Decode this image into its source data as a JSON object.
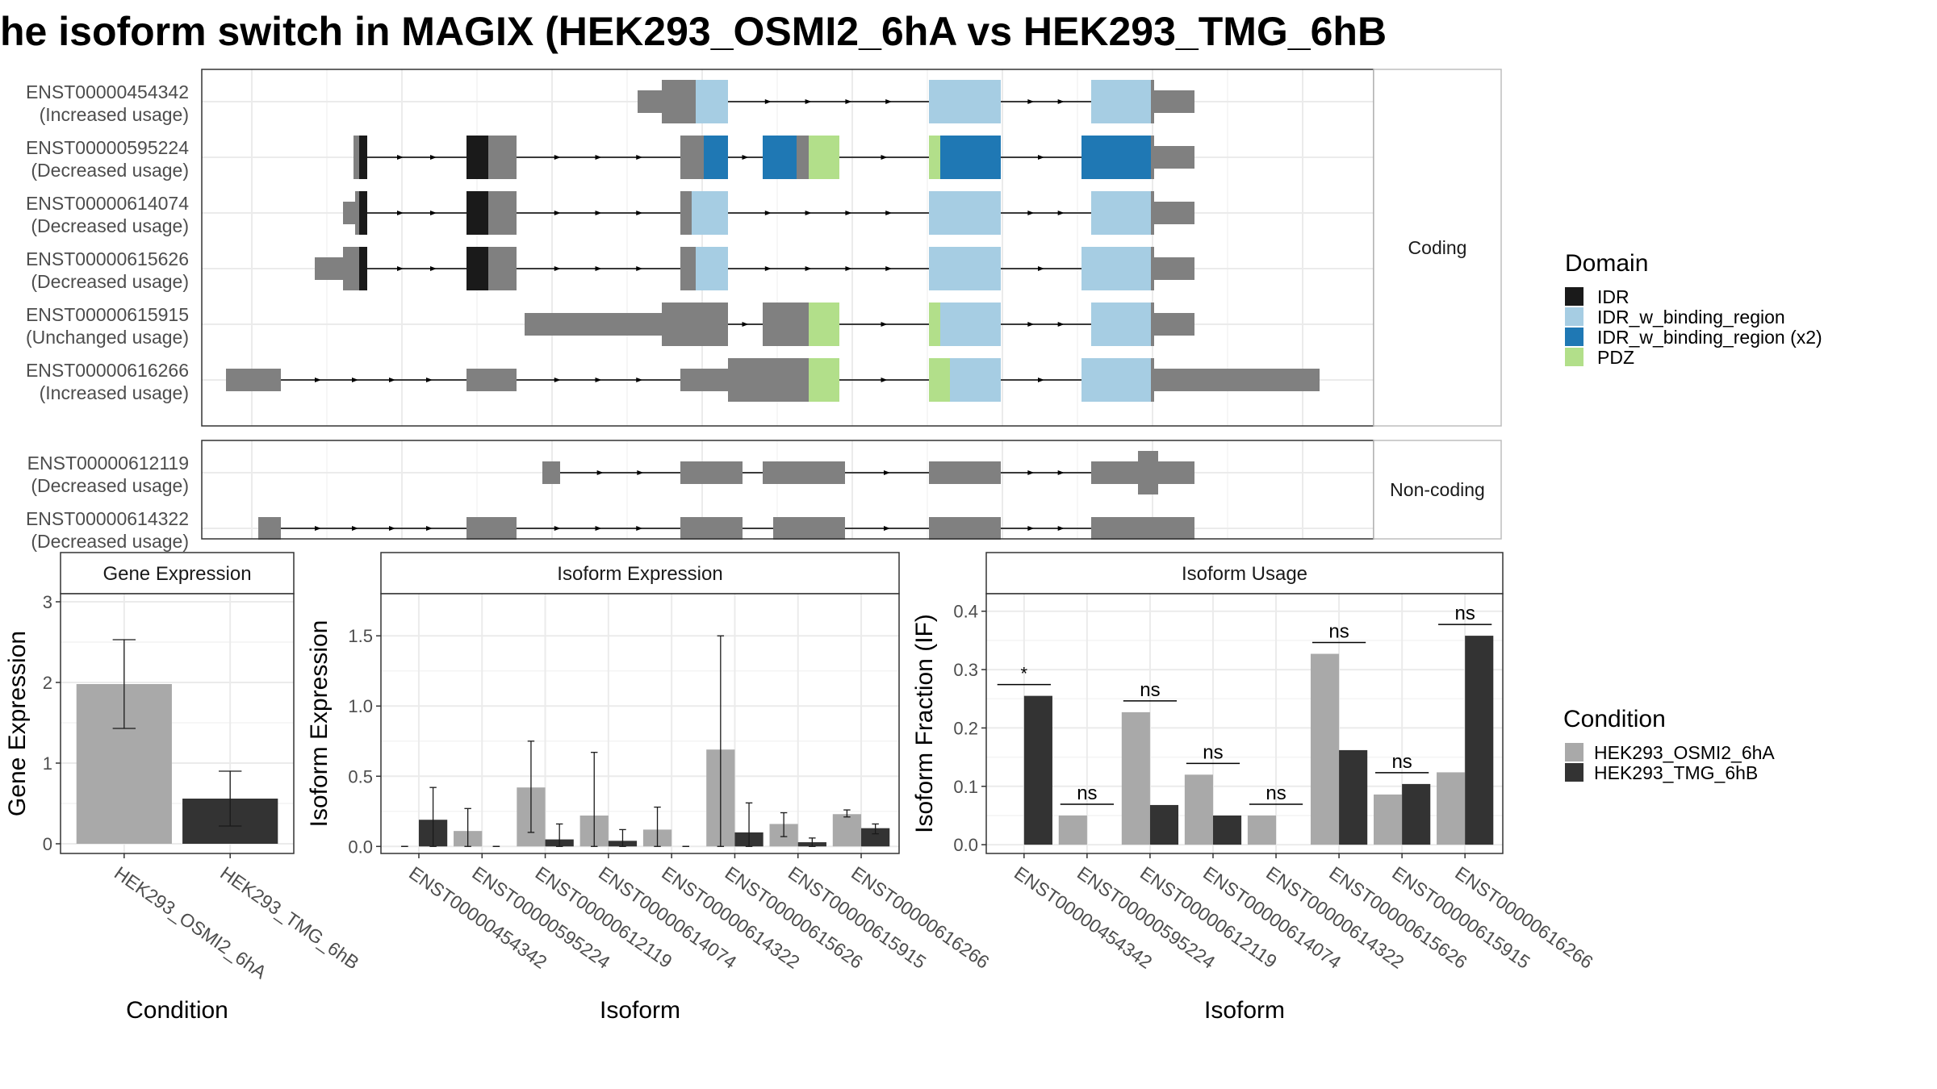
{
  "title": "he isoform switch in MAGIX (HEK293_OSMI2_6hA vs HEK293_TMG_6hB",
  "colors": {
    "exon": "#808080",
    "IDR": "#1a1a1a",
    "IDR_w_binding_region": "#a6cde3",
    "IDR_w_binding_region (x2)": "#1f78b4",
    "PDZ": "#b2df8a",
    "cond1": "#a9a9a9",
    "cond2": "#333333"
  },
  "transcript_panels": [
    {
      "strip": "Coding",
      "rows": [
        {
          "id": "ENST00000454342",
          "usage": "(Increased usage)",
          "exons": [
            [
              540,
              570,
              "UTR"
            ],
            [
              570,
              612,
              "CDS"
            ],
            [
              612,
              652,
              "CDS"
            ],
            [
              901,
              990,
              "CDS"
            ],
            [
              1102,
              1177,
              "CDS"
            ],
            [
              1177,
              1180,
              "CDS"
            ],
            [
              1180,
              1230,
              "UTR"
            ]
          ],
          "domains": [
            [
              612,
              652,
              "IDR_w_binding_region"
            ],
            [
              901,
              990,
              "IDR_w_binding_region"
            ],
            [
              1102,
              1176,
              "IDR_w_binding_region"
            ]
          ]
        },
        {
          "id": "ENST00000595224",
          "usage": "(Decreased usage)",
          "exons": [
            [
              188,
              205,
              "CDS"
            ],
            [
              328,
              355,
              "CDS"
            ],
            [
              355,
              390,
              "CDS"
            ],
            [
              593,
              622,
              "CDS"
            ],
            [
              622,
              652,
              "CDS"
            ],
            [
              695,
              737,
              "CDS"
            ],
            [
              737,
              752,
              "CDS"
            ],
            [
              752,
              790,
              "CDS"
            ],
            [
              901,
              990,
              "CDS"
            ],
            [
              1090,
              1177,
              "CDS"
            ],
            [
              1177,
              1180,
              "CDS"
            ],
            [
              1180,
              1230,
              "UTR"
            ]
          ],
          "domains": [
            [
              195,
              205,
              "IDR"
            ],
            [
              328,
              355,
              "IDR"
            ],
            [
              622,
              652,
              "IDR_w_binding_region (x2)"
            ],
            [
              695,
              737,
              "IDR_w_binding_region (x2)"
            ],
            [
              752,
              790,
              "PDZ"
            ],
            [
              901,
              915,
              "PDZ"
            ],
            [
              915,
              990,
              "IDR_w_binding_region (x2)"
            ],
            [
              1090,
              1176,
              "IDR_w_binding_region (x2)"
            ]
          ]
        },
        {
          "id": "ENST00000614074",
          "usage": "(Decreased usage)",
          "exons": [
            [
              175,
              190,
              "UTR"
            ],
            [
              190,
              205,
              "CDS"
            ],
            [
              328,
              355,
              "CDS"
            ],
            [
              355,
              390,
              "CDS"
            ],
            [
              593,
              607,
              "CDS"
            ],
            [
              607,
              652,
              "CDS"
            ],
            [
              901,
              990,
              "CDS"
            ],
            [
              1102,
              1177,
              "CDS"
            ],
            [
              1177,
              1180,
              "CDS"
            ],
            [
              1180,
              1230,
              "UTR"
            ]
          ],
          "domains": [
            [
              195,
              205,
              "IDR"
            ],
            [
              328,
              355,
              "IDR"
            ],
            [
              607,
              652,
              "IDR_w_binding_region"
            ],
            [
              901,
              990,
              "IDR_w_binding_region"
            ],
            [
              1102,
              1176,
              "IDR_w_binding_region"
            ]
          ]
        },
        {
          "id": "ENST00000615626",
          "usage": "(Decreased usage)",
          "exons": [
            [
              140,
              175,
              "UTR"
            ],
            [
              175,
              205,
              "CDS"
            ],
            [
              328,
              355,
              "CDS"
            ],
            [
              355,
              390,
              "CDS"
            ],
            [
              593,
              612,
              "CDS"
            ],
            [
              612,
              652,
              "CDS"
            ],
            [
              901,
              990,
              "CDS"
            ],
            [
              1090,
              1177,
              "CDS"
            ],
            [
              1177,
              1180,
              "CDS"
            ],
            [
              1180,
              1230,
              "UTR"
            ]
          ],
          "domains": [
            [
              195,
              205,
              "IDR"
            ],
            [
              328,
              355,
              "IDR"
            ],
            [
              612,
              652,
              "IDR_w_binding_region"
            ],
            [
              901,
              990,
              "IDR_w_binding_region"
            ],
            [
              1090,
              1176,
              "IDR_w_binding_region"
            ]
          ]
        },
        {
          "id": "ENST00000615915",
          "usage": "(Unchanged usage)",
          "exons": [
            [
              400,
              570,
              "UTR"
            ],
            [
              570,
              652,
              "CDS"
            ],
            [
              695,
              752,
              "CDS"
            ],
            [
              752,
              790,
              "CDS"
            ],
            [
              901,
              990,
              "CDS"
            ],
            [
              1102,
              1177,
              "CDS"
            ],
            [
              1177,
              1180,
              "CDS"
            ],
            [
              1180,
              1230,
              "UTR"
            ]
          ],
          "domains": [
            [
              752,
              790,
              "PDZ"
            ],
            [
              901,
              915,
              "PDZ"
            ],
            [
              915,
              990,
              "IDR_w_binding_region"
            ],
            [
              1102,
              1176,
              "IDR_w_binding_region"
            ]
          ]
        },
        {
          "id": "ENST00000616266",
          "usage": "(Increased usage)",
          "exons": [
            [
              30,
              98,
              "UTR"
            ],
            [
              328,
              390,
              "UTR"
            ],
            [
              593,
              652,
              "UTR"
            ],
            [
              652,
              752,
              "CDS"
            ],
            [
              752,
              790,
              "CDS"
            ],
            [
              901,
              990,
              "CDS"
            ],
            [
              1090,
              1177,
              "CDS"
            ],
            [
              1177,
              1180,
              "CDS"
            ],
            [
              1180,
              1385,
              "UTR"
            ]
          ],
          "domains": [
            [
              752,
              790,
              "PDZ"
            ],
            [
              901,
              927,
              "PDZ"
            ],
            [
              927,
              990,
              "IDR_w_binding_region"
            ],
            [
              1090,
              1176,
              "IDR_w_binding_region"
            ]
          ]
        }
      ]
    },
    {
      "strip": "Non-coding",
      "rows": [
        {
          "id": "ENST00000612119",
          "usage": "(Decreased usage)",
          "exons": [
            [
              422,
              444,
              "UTR"
            ],
            [
              593,
              670,
              "UTR"
            ],
            [
              695,
              797,
              "UTR"
            ],
            [
              901,
              990,
              "UTR"
            ],
            [
              1102,
              1230,
              "UTR"
            ],
            [
              1160,
              1185,
              "CDS"
            ]
          ],
          "domains": []
        },
        {
          "id": "ENST00000614322",
          "usage": "(Decreased usage)",
          "exons": [
            [
              70,
              98,
              "UTR"
            ],
            [
              328,
              390,
              "UTR"
            ],
            [
              593,
              670,
              "UTR"
            ],
            [
              708,
              797,
              "UTR"
            ],
            [
              901,
              990,
              "UTR"
            ],
            [
              1102,
              1230,
              "UTR"
            ]
          ],
          "domains": []
        }
      ]
    }
  ],
  "legends": {
    "domain": {
      "title": "Domain",
      "items": [
        "IDR",
        "IDR_w_binding_region",
        "IDR_w_binding_region (x2)",
        "PDZ"
      ]
    },
    "condition": {
      "title": "Condition",
      "items": [
        "HEK293_OSMI2_6hA",
        "HEK293_TMG_6hB"
      ]
    }
  },
  "chart_data": [
    {
      "type": "bar",
      "title": "Gene Expression",
      "xlabel": "Condition",
      "ylabel": "Gene Expression",
      "ylim": [
        -0.12,
        3.1
      ],
      "yticks": [
        0,
        1,
        2,
        3
      ],
      "categories": [
        "HEK293_OSMI2_6hA",
        "HEK293_TMG_6hB"
      ],
      "values": [
        1.98,
        0.56
      ],
      "error_low": [
        1.43,
        0.22
      ],
      "error_high": [
        2.53,
        0.9
      ]
    },
    {
      "type": "bar",
      "title": "Isoform Expression",
      "xlabel": "Isoform",
      "ylabel": "Isoform Expression",
      "ylim": [
        -0.05,
        1.8
      ],
      "yticks": [
        0.0,
        0.5,
        1.0,
        1.5
      ],
      "categories": [
        "ENST00000454342",
        "ENST00000595224",
        "ENST00000612119",
        "ENST00000614074",
        "ENST00000614322",
        "ENST00000615626",
        "ENST00000615915",
        "ENST00000616266"
      ],
      "series": [
        {
          "name": "HEK293_OSMI2_6hA",
          "values": [
            0.0,
            0.11,
            0.42,
            0.22,
            0.12,
            0.69,
            0.16,
            0.23
          ],
          "error_low": [
            0.0,
            0.0,
            0.1,
            0.0,
            0.0,
            0.0,
            0.07,
            0.21
          ],
          "error_high": [
            0.0,
            0.27,
            0.75,
            0.67,
            0.28,
            1.5,
            0.24,
            0.26
          ]
        },
        {
          "name": "HEK293_TMG_6hB",
          "values": [
            0.19,
            0.0,
            0.05,
            0.04,
            0.0,
            0.1,
            0.03,
            0.13
          ],
          "error_low": [
            0.0,
            0.0,
            0.0,
            0.0,
            0.0,
            0.0,
            0.0,
            0.09
          ],
          "error_high": [
            0.42,
            0.0,
            0.16,
            0.12,
            0.0,
            0.31,
            0.06,
            0.16
          ]
        }
      ]
    },
    {
      "type": "bar",
      "title": "Isoform Usage",
      "xlabel": "Isoform",
      "ylabel": "Isoform Fraction (IF)",
      "ylim": [
        -0.015,
        0.43
      ],
      "yticks": [
        0.0,
        0.1,
        0.2,
        0.3,
        0.4
      ],
      "categories": [
        "ENST00000454342",
        "ENST00000595224",
        "ENST00000612119",
        "ENST00000614074",
        "ENST00000614322",
        "ENST00000615626",
        "ENST00000615915",
        "ENST00000616266"
      ],
      "series": [
        {
          "name": "HEK293_OSMI2_6hA",
          "values": [
            0.0,
            0.05,
            0.227,
            0.12,
            0.05,
            0.327,
            0.086,
            0.124
          ]
        },
        {
          "name": "HEK293_TMG_6hB",
          "values": [
            0.255,
            0.0,
            0.068,
            0.05,
            0.0,
            0.162,
            0.104,
            0.358
          ]
        }
      ],
      "significance": [
        "*",
        "ns",
        "ns",
        "ns",
        "ns",
        "ns",
        "ns",
        "ns"
      ]
    }
  ]
}
